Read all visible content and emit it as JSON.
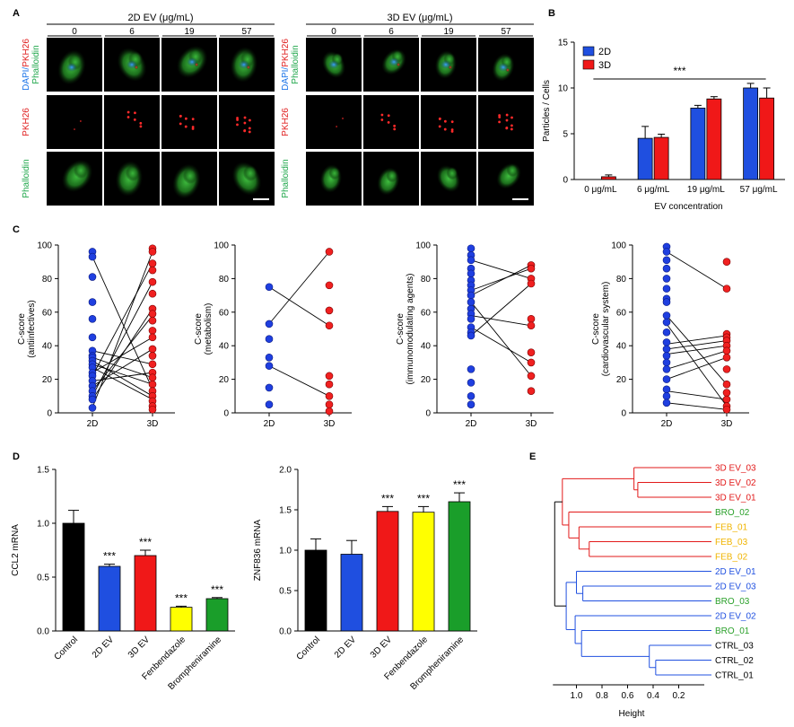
{
  "panel_letters": {
    "a": "A",
    "b": "B",
    "c": "C",
    "d": "D",
    "e": "E"
  },
  "micro": {
    "groups": [
      {
        "title": "2D EV (μg/mL)",
        "conc": [
          "0",
          "6",
          "19",
          "57"
        ]
      },
      {
        "title": "3D EV (μg/mL)",
        "conc": [
          "0",
          "6",
          "19",
          "57"
        ]
      }
    ],
    "row_labels": [
      {
        "parts": [
          {
            "t": "DAPI/",
            "c": "#1a73e8"
          },
          {
            "t": "PKH26",
            "c": "#e02020"
          }
        ],
        "line2": {
          "t": "Phalloidin",
          "c": "#1ea64a"
        }
      },
      {
        "parts": [
          {
            "t": "PKH26",
            "c": "#e02020"
          }
        ]
      },
      {
        "parts": [
          {
            "t": "Phalloidin",
            "c": "#1ea64a"
          }
        ]
      }
    ]
  },
  "chart_data": [
    {
      "id": "B",
      "type": "bar",
      "categories": [
        "0 μg/mL",
        "6 μg/mL",
        "19 μg/mL",
        "57 μg/mL"
      ],
      "series": [
        {
          "name": "2D",
          "color": "#1f4fe0",
          "values": [
            0.0,
            4.5,
            7.8,
            10.0
          ],
          "err": [
            0,
            1.3,
            0.3,
            0.5
          ]
        },
        {
          "name": "3D",
          "color": "#f01818",
          "values": [
            0.3,
            4.6,
            8.8,
            8.9
          ],
          "err": [
            0.2,
            0.35,
            0.25,
            1.1
          ]
        }
      ],
      "xlabel": "EV concentration",
      "ylabel": "Particles / Cells",
      "ylim": [
        0,
        15
      ],
      "yticks": [
        "0",
        "5",
        "10",
        "15"
      ],
      "annotation": "***"
    },
    {
      "id": "C1",
      "type": "scatter",
      "categories": [
        "2D",
        "3D"
      ],
      "ylabel": [
        "C-score",
        "(antiinfectives)"
      ],
      "ylim": [
        0,
        100
      ],
      "yticks": [
        "0",
        "20",
        "40",
        "60",
        "80",
        "100"
      ],
      "d2": [
        96,
        93,
        81,
        66,
        56,
        45,
        37,
        34,
        33,
        31,
        29,
        27,
        24,
        22,
        19,
        16,
        13,
        10,
        8,
        3
      ],
      "d3": [
        98,
        96,
        89,
        85,
        78,
        71,
        62,
        59,
        55,
        49,
        45,
        38,
        34,
        29,
        24,
        21,
        17,
        13,
        10,
        7,
        4,
        2
      ],
      "pairs": [
        [
          93,
          14
        ],
        [
          37,
          29
        ],
        [
          33,
          21
        ],
        [
          31,
          10
        ],
        [
          29,
          17
        ],
        [
          27,
          8
        ],
        [
          24,
          45
        ],
        [
          22,
          89
        ],
        [
          19,
          24
        ],
        [
          16,
          38
        ],
        [
          13,
          58
        ],
        [
          10,
          78
        ],
        [
          8,
          62
        ],
        [
          3,
          96
        ]
      ]
    },
    {
      "id": "C2",
      "type": "scatter",
      "categories": [
        "2D",
        "3D"
      ],
      "ylabel": [
        "C-score",
        "(metabolism)"
      ],
      "ylim": [
        0,
        100
      ],
      "yticks": [
        "0",
        "20",
        "40",
        "60",
        "80",
        "100"
      ],
      "d2": [
        75,
        53,
        44,
        33,
        28,
        15,
        5
      ],
      "d3": [
        96,
        76,
        61,
        52,
        22,
        17,
        10,
        5,
        1
      ],
      "pairs": [
        [
          75,
          52
        ],
        [
          53,
          96
        ],
        [
          28,
          10
        ]
      ]
    },
    {
      "id": "C3",
      "type": "scatter",
      "categories": [
        "2D",
        "3D"
      ],
      "ylabel": [
        "C-score",
        "(immunomodulating agents)"
      ],
      "ylim": [
        0,
        100
      ],
      "yticks": [
        "0",
        "20",
        "40",
        "60",
        "80",
        "100"
      ],
      "d2": [
        98,
        94,
        91,
        86,
        83,
        79,
        76,
        73,
        70,
        66,
        62,
        59,
        56,
        51,
        48,
        46,
        26,
        18,
        10,
        5
      ],
      "d3": [
        88,
        86,
        80,
        77,
        56,
        52,
        36,
        30,
        22,
        13
      ],
      "pairs": [
        [
          91,
          80
        ],
        [
          73,
          86
        ],
        [
          70,
          88
        ],
        [
          66,
          22
        ],
        [
          58,
          52
        ],
        [
          51,
          30
        ],
        [
          46,
          77
        ]
      ]
    },
    {
      "id": "C4",
      "type": "scatter",
      "categories": [
        "2D",
        "3D"
      ],
      "ylabel": [
        "C-score",
        "(cardiovascular system)"
      ],
      "ylim": [
        0,
        100
      ],
      "yticks": [
        "0",
        "20",
        "40",
        "60",
        "80",
        "100"
      ],
      "d2": [
        99,
        96,
        91,
        86,
        80,
        74,
        68,
        66,
        58,
        54,
        48,
        42,
        38,
        34,
        30,
        26,
        20,
        14,
        10,
        6
      ],
      "d3": [
        90,
        74,
        47,
        45,
        43,
        40,
        37,
        33,
        26,
        17,
        12,
        8,
        4,
        2
      ],
      "pairs": [
        [
          96,
          74
        ],
        [
          58,
          17
        ],
        [
          53,
          4
        ],
        [
          41,
          46
        ],
        [
          38,
          43
        ],
        [
          35,
          40
        ],
        [
          26,
          37
        ],
        [
          20,
          33
        ],
        [
          13,
          8
        ],
        [
          6,
          2
        ]
      ]
    },
    {
      "id": "D1",
      "type": "bar",
      "categories": [
        "Control",
        "2D EV",
        "3D EV",
        "Fenbendazole",
        "Brompheniramine"
      ],
      "values": [
        1.0,
        0.6,
        0.7,
        0.22,
        0.3
      ],
      "err": [
        0.12,
        0.02,
        0.05,
        0.01,
        0.01
      ],
      "colors": [
        "#000000",
        "#1f4fe0",
        "#f01818",
        "#ffff00",
        "#1a9e2a"
      ],
      "sig": [
        "",
        "***",
        "***",
        "***",
        "***"
      ],
      "ylabel": "CCL2 mRNA",
      "ylim": [
        0,
        1.5
      ],
      "yticks": [
        "0.0",
        "0.5",
        "1.0",
        "1.5"
      ]
    },
    {
      "id": "D2",
      "type": "bar",
      "categories": [
        "Control",
        "2D EV",
        "3D EV",
        "Fenbendazole",
        "Brompheniramine"
      ],
      "values": [
        1.0,
        0.95,
        1.48,
        1.47,
        1.6
      ],
      "err": [
        0.14,
        0.17,
        0.06,
        0.07,
        0.11
      ],
      "colors": [
        "#000000",
        "#1f4fe0",
        "#f01818",
        "#ffff00",
        "#1a9e2a"
      ],
      "sig": [
        "",
        "",
        "***",
        "***",
        "***"
      ],
      "ylabel": "ZNF836 mRNA",
      "ylim": [
        0,
        2.0
      ],
      "yticks": [
        "0.0",
        "0.5",
        "1.0",
        "1.5",
        "2.0"
      ]
    },
    {
      "id": "E",
      "type": "dendrogram",
      "leaves": [
        {
          "label": "3D EV_03",
          "color": "#e21a1a"
        },
        {
          "label": "3D EV_02",
          "color": "#e21a1a"
        },
        {
          "label": "3D EV_01",
          "color": "#e21a1a"
        },
        {
          "label": "BRO_02",
          "color": "#2aa02a"
        },
        {
          "label": "FEB_01",
          "color": "#f0b400"
        },
        {
          "label": "FEB_03",
          "color": "#f0b400"
        },
        {
          "label": "FEB_02",
          "color": "#f0b400"
        },
        {
          "label": "2D EV_01",
          "color": "#2050e0"
        },
        {
          "label": "2D EV_03",
          "color": "#2050e0"
        },
        {
          "label": "BRO_03",
          "color": "#2aa02a"
        },
        {
          "label": "2D EV_02",
          "color": "#2050e0"
        },
        {
          "label": "BRO_01",
          "color": "#2aa02a"
        },
        {
          "label": "CTRL_03",
          "color": "#000000"
        },
        {
          "label": "CTRL_02",
          "color": "#000000"
        },
        {
          "label": "CTRL_01",
          "color": "#000000"
        }
      ],
      "xlabel": "Height",
      "xticks": [
        "1.0",
        "0.8",
        "0.6",
        "0.4",
        "0.2"
      ],
      "redColor": "#e21a1a",
      "blueColor": "#2050e0"
    }
  ]
}
